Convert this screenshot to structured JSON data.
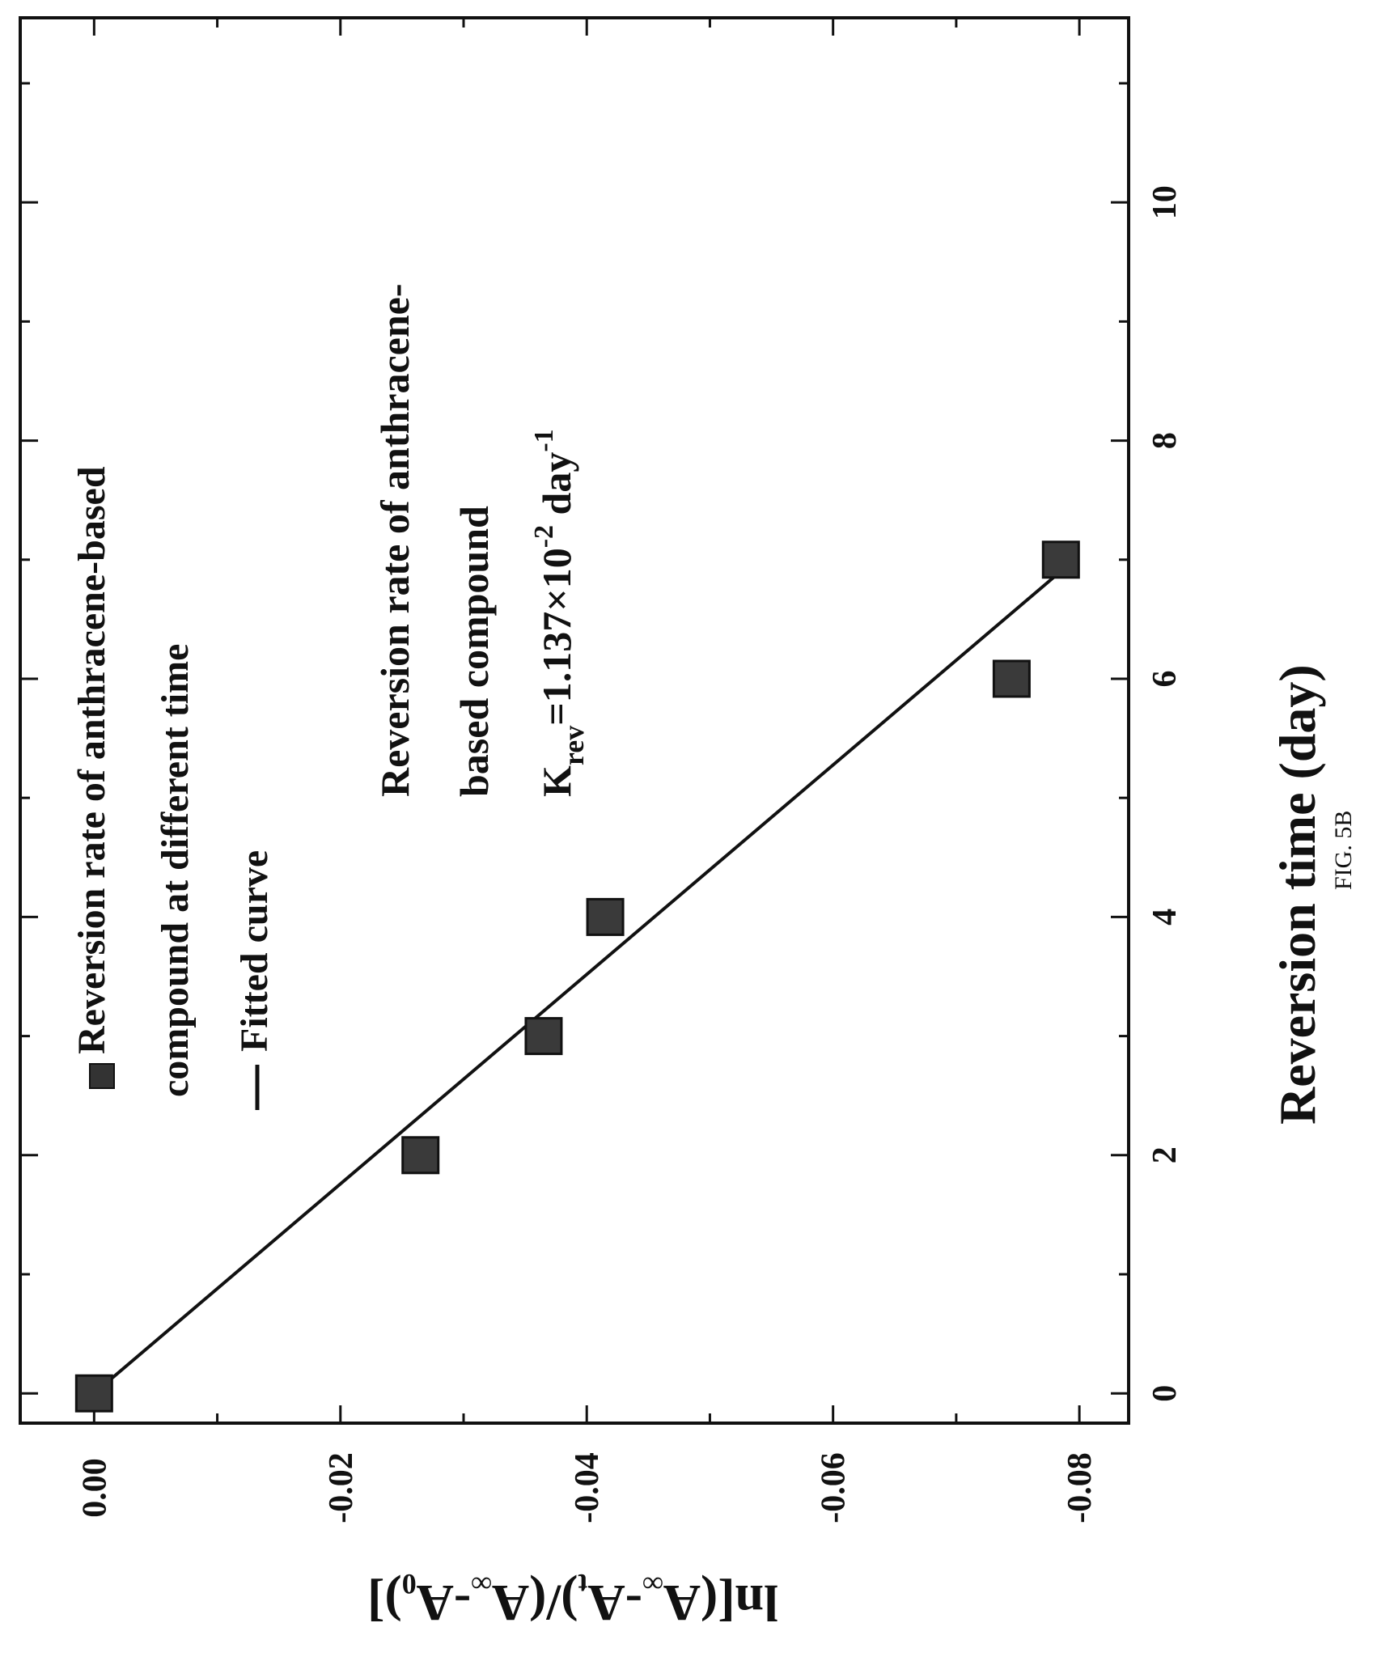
{
  "chart_data": {
    "type": "scatter",
    "orientation": "rotated-90-clockwise",
    "xlabel": "Reversion time (day)",
    "ylabel": "ln[(A∞-At)/(A∞-A0)]",
    "xlim": [
      -0.25,
      11.55
    ],
    "ylim": [
      0.006,
      -0.084
    ],
    "xticks": [
      0,
      2,
      4,
      6,
      8,
      10
    ],
    "yticks": [
      0.0,
      -0.02,
      -0.04,
      -0.06,
      -0.08
    ],
    "ytick_labels": [
      "0.00",
      "-0.02",
      "-0.04",
      "-0.06",
      "-0.08"
    ],
    "grid": false,
    "series": [
      {
        "name": "Reversion rate of anthracene-based compound at different time",
        "marker": "square",
        "x": [
          0,
          2,
          3,
          4,
          6,
          7
        ],
        "y": [
          0.0,
          -0.0265,
          -0.0365,
          -0.0415,
          -0.0745,
          -0.0785
        ]
      },
      {
        "name": "Fitted curve",
        "style": "line",
        "x": [
          0,
          7
        ],
        "y": [
          0.0,
          -0.0796
        ]
      }
    ],
    "legend": {
      "placement": "top-left",
      "marker_lines": [
        "Reversion rate of anthracene-based",
        "compound at different time"
      ],
      "line_label": "Fitted curve"
    },
    "annotation": {
      "line1": "Reversion rate of anthracene-",
      "line2": "based compound",
      "k_symbol": "K",
      "k_sub": "rev",
      "k_eq": "=1.137×10",
      "k_exp": "-2",
      "k_unit": " day",
      "k_unit_exp": "-1"
    },
    "ylabel_parts": {
      "p1": "ln[(A",
      "s1": "∞",
      "p2": "-A",
      "s2": "t",
      "p3": ")/(A",
      "s3": "∞",
      "p4": "-A",
      "s4": "0",
      "p5": ")]"
    }
  },
  "caption": "FIG. 5B"
}
